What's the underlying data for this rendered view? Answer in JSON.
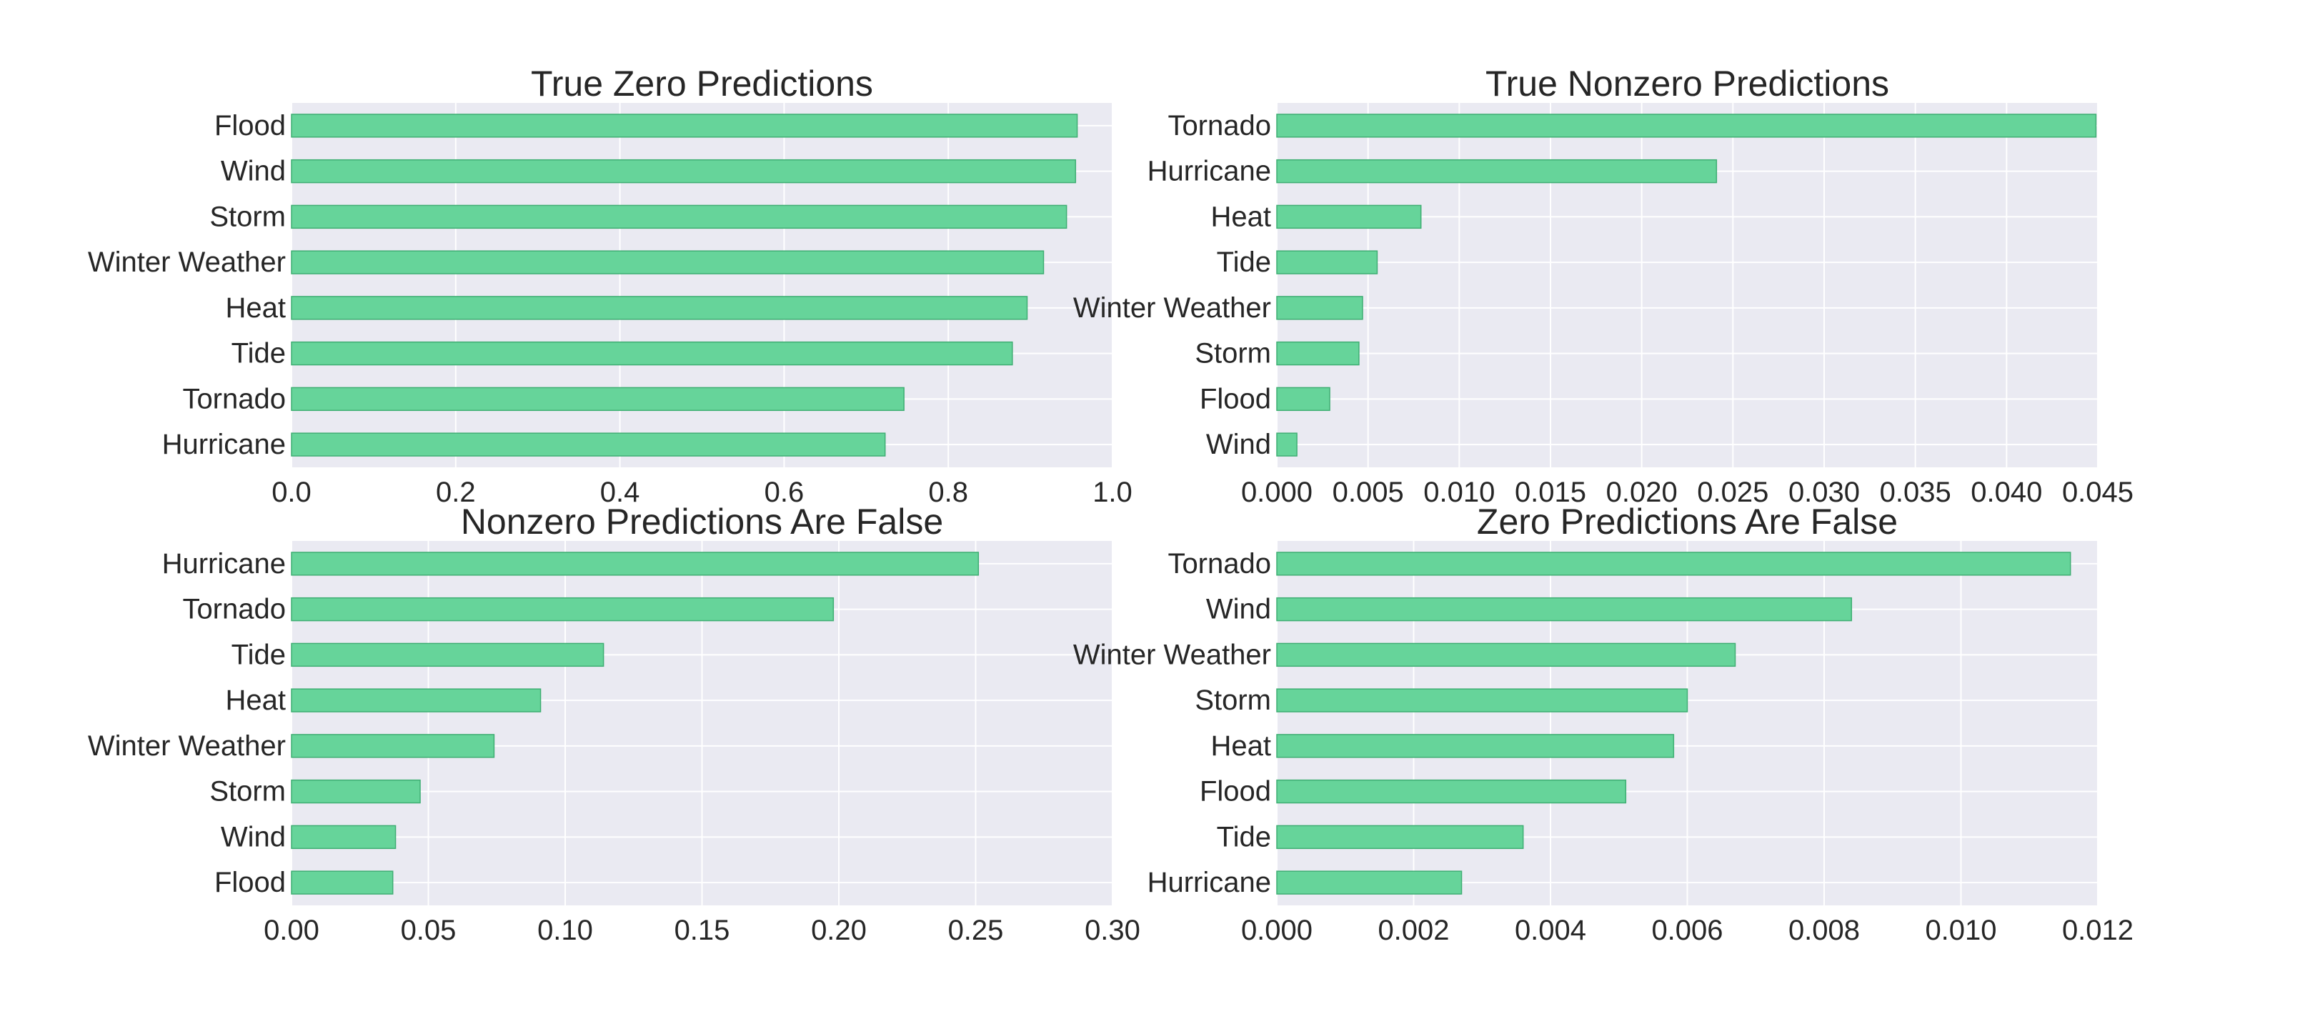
{
  "colors": {
    "bar_fill": "#66d49a",
    "bar_edge": "#3fae73",
    "axes_background": "#eaeaf2",
    "grid": "#ffffff",
    "text": "#262626"
  },
  "chart_data": [
    {
      "type": "bar",
      "orientation": "horizontal",
      "title": "True Zero Predictions",
      "categories": [
        "Flood",
        "Wind",
        "Storm",
        "Winter Weather",
        "Heat",
        "Tide",
        "Tornado",
        "Hurricane"
      ],
      "values": [
        0.957,
        0.955,
        0.944,
        0.916,
        0.896,
        0.878,
        0.746,
        0.723
      ],
      "xlim": [
        0,
        1.0
      ],
      "xticks": [
        "0.0",
        "0.2",
        "0.4",
        "0.6",
        "0.8",
        "1.0"
      ],
      "grid": true
    },
    {
      "type": "bar",
      "orientation": "horizontal",
      "title": "True Nonzero Predictions",
      "categories": [
        "Tornado",
        "Hurricane",
        "Heat",
        "Tide",
        "Winter Weather",
        "Storm",
        "Flood",
        "Wind"
      ],
      "values": [
        0.0449,
        0.0241,
        0.0079,
        0.0055,
        0.0047,
        0.0045,
        0.0029,
        0.0011
      ],
      "xlim": [
        0,
        0.045
      ],
      "xticks": [
        "0.000",
        "0.005",
        "0.010",
        "0.015",
        "0.020",
        "0.025",
        "0.030",
        "0.035",
        "0.040",
        "0.045"
      ],
      "grid": true
    },
    {
      "type": "bar",
      "orientation": "horizontal",
      "title": "Nonzero Predictions Are False",
      "categories": [
        "Hurricane",
        "Tornado",
        "Tide",
        "Heat",
        "Winter Weather",
        "Storm",
        "Wind",
        "Flood"
      ],
      "values": [
        0.251,
        0.198,
        0.114,
        0.091,
        0.074,
        0.047,
        0.038,
        0.037
      ],
      "xlim": [
        0,
        0.3
      ],
      "xticks": [
        "0.00",
        "0.05",
        "0.10",
        "0.15",
        "0.20",
        "0.25",
        "0.30"
      ],
      "grid": true
    },
    {
      "type": "bar",
      "orientation": "horizontal",
      "title": "Zero Predictions Are False",
      "categories": [
        "Tornado",
        "Wind",
        "Winter Weather",
        "Storm",
        "Heat",
        "Flood",
        "Tide",
        "Hurricane"
      ],
      "values": [
        0.0116,
        0.0084,
        0.0067,
        0.006,
        0.0058,
        0.0051,
        0.0036,
        0.0027
      ],
      "xlim": [
        0,
        0.012
      ],
      "xticks": [
        "0.000",
        "0.002",
        "0.004",
        "0.006",
        "0.008",
        "0.010",
        "0.012"
      ],
      "grid": true
    }
  ]
}
